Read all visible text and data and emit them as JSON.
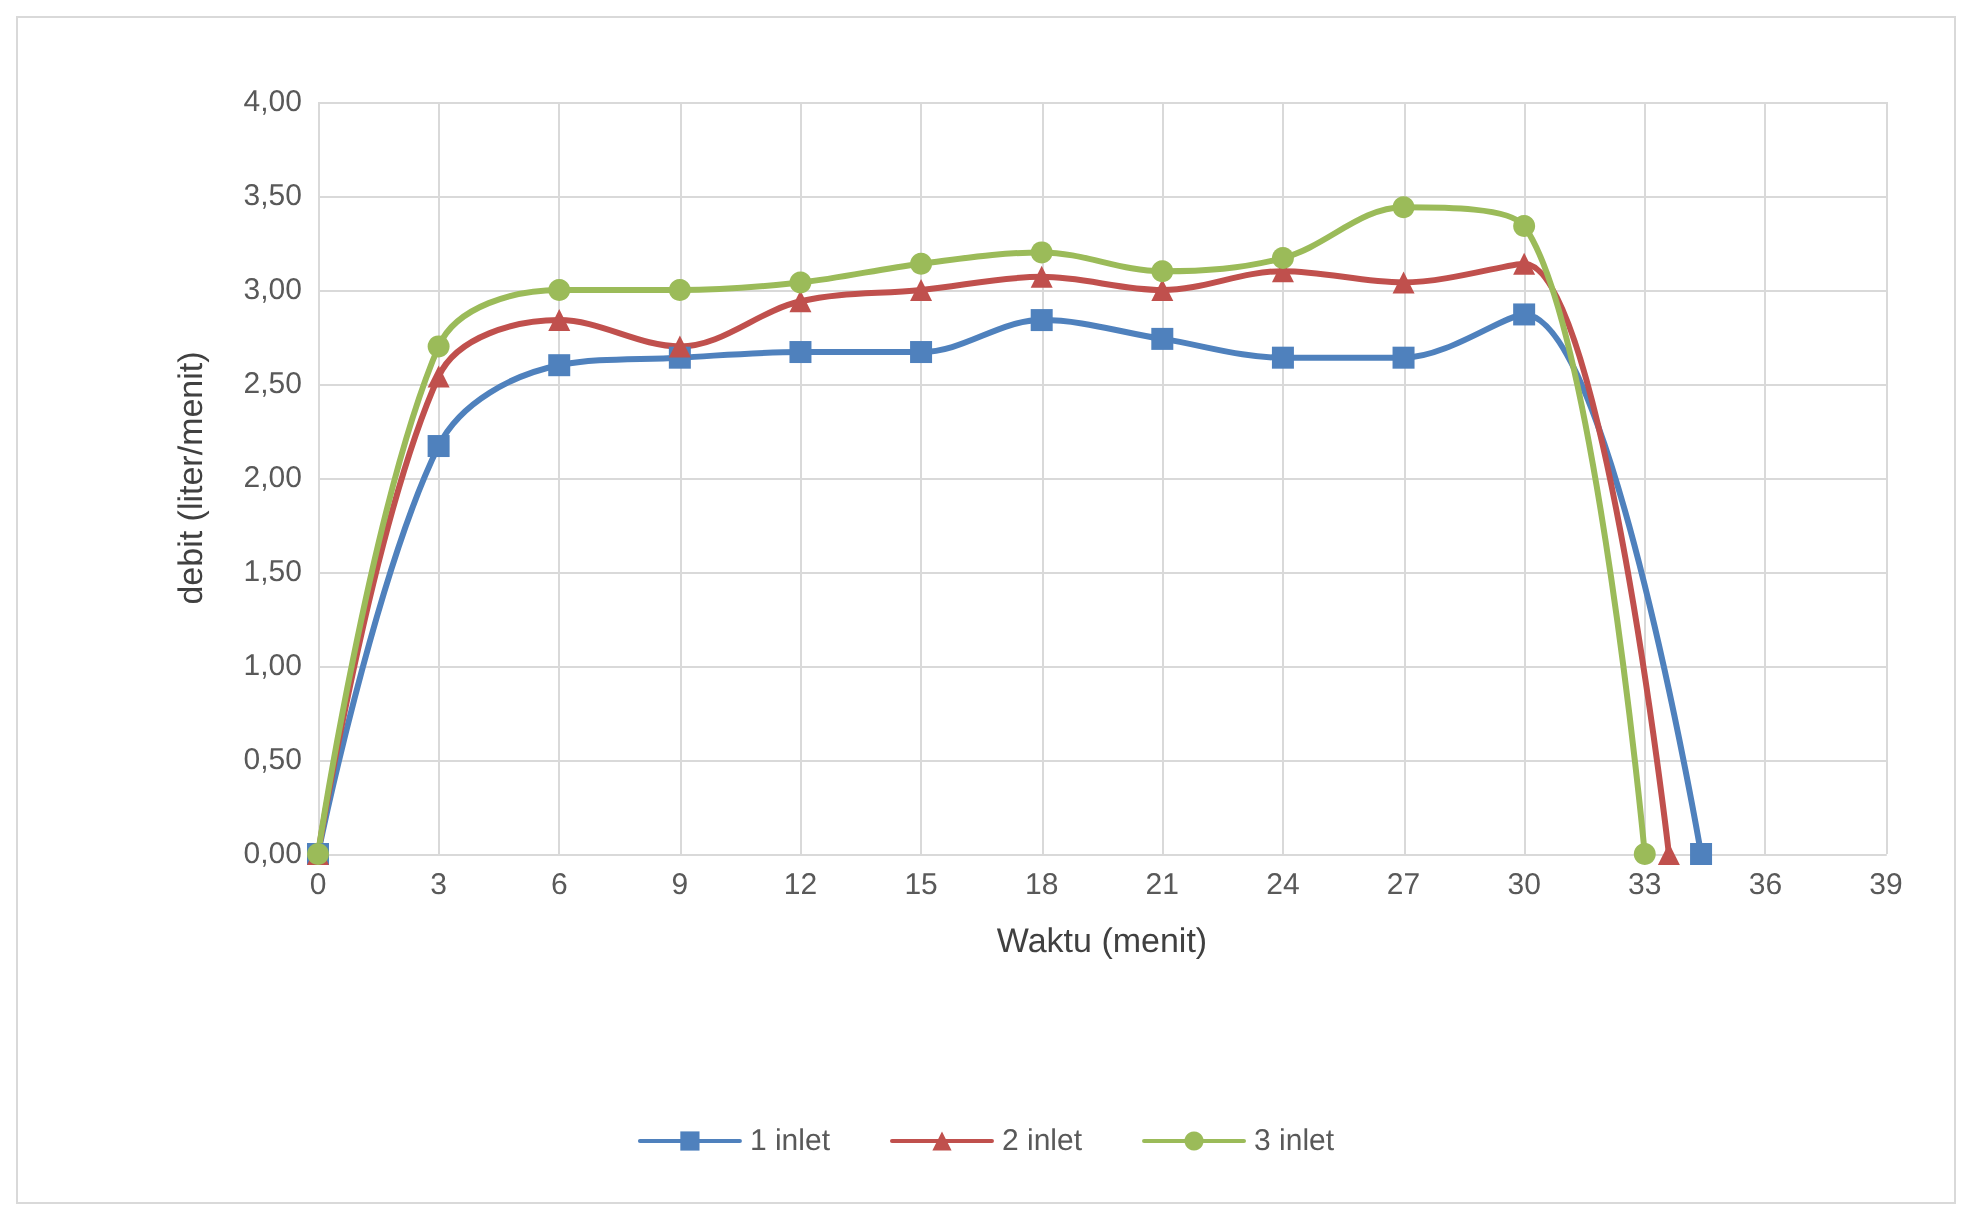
{
  "chart_data": {
    "type": "line",
    "xlabel": "Waktu (menit)",
    "ylabel": "debit (liter/menit)",
    "xlim": [
      0,
      39
    ],
    "xticks": [
      0,
      3,
      6,
      9,
      12,
      15,
      18,
      21,
      24,
      27,
      30,
      33,
      36,
      39
    ],
    "ylim": [
      0,
      4
    ],
    "yticks": [
      {
        "value": 0,
        "label": "0,00"
      },
      {
        "value": 0.5,
        "label": "0,50"
      },
      {
        "value": 1,
        "label": "1,00"
      },
      {
        "value": 1.5,
        "label": "1,50"
      },
      {
        "value": 2,
        "label": "2,00"
      },
      {
        "value": 2.5,
        "label": "2,50"
      },
      {
        "value": 3,
        "label": "3,00"
      },
      {
        "value": 3.5,
        "label": "3,50"
      },
      {
        "value": 4,
        "label": "4,00"
      }
    ],
    "grid": true,
    "legend": "bottom",
    "line_style": "solid",
    "series": [
      {
        "name": "1 inlet",
        "color": "#4f81bd",
        "marker": "square",
        "x": [
          0,
          3,
          6,
          9,
          12,
          15,
          18,
          21,
          24,
          27,
          30,
          34.4
        ],
        "values": [
          0,
          2.17,
          2.6,
          2.64,
          2.67,
          2.67,
          2.84,
          2.74,
          2.64,
          2.64,
          2.87,
          0
        ]
      },
      {
        "name": "2 inlet",
        "color": "#c0504d",
        "marker": "triangle",
        "x": [
          0,
          3,
          6,
          9,
          12,
          15,
          18,
          21,
          24,
          27,
          30,
          33.6
        ],
        "values": [
          0,
          2.54,
          2.84,
          2.7,
          2.94,
          3.0,
          3.07,
          3.0,
          3.1,
          3.04,
          3.14,
          0
        ]
      },
      {
        "name": "3 inlet",
        "color": "#9bbb59",
        "marker": "circle",
        "x": [
          0,
          3,
          6,
          9,
          12,
          15,
          18,
          21,
          24,
          27,
          30,
          33
        ],
        "values": [
          0,
          2.7,
          3.0,
          3.0,
          3.04,
          3.14,
          3.2,
          3.1,
          3.17,
          3.44,
          3.34,
          0
        ]
      }
    ]
  }
}
